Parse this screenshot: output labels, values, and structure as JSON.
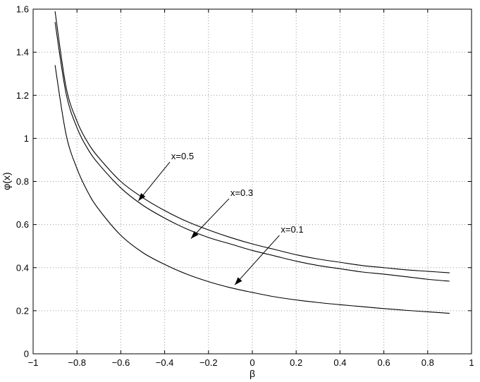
{
  "chart_data": {
    "type": "line",
    "title": "",
    "xlabel": "β",
    "ylabel": "φ(x)",
    "xlim": [
      -1,
      1
    ],
    "ylim": [
      0,
      1.6
    ],
    "grid": true,
    "xticks": [
      -1,
      -0.8,
      -0.6,
      -0.4,
      -0.2,
      0,
      0.2,
      0.4,
      0.6,
      0.8,
      1
    ],
    "xtick_labels": [
      "−1",
      "−0.8",
      "−0.6",
      "−0.4",
      "−0.2",
      "0",
      "0.2",
      "0.4",
      "0.6",
      "0.8",
      "1"
    ],
    "yticks": [
      0,
      0.2,
      0.4,
      0.6,
      0.8,
      1,
      1.2,
      1.4,
      1.6
    ],
    "ytick_labels": [
      "0",
      "0.2",
      "0.4",
      "0.6",
      "0.8",
      "1",
      "1.2",
      "1.4",
      "1.6"
    ],
    "x": [
      -0.9,
      -0.85,
      -0.8,
      -0.75,
      -0.7,
      -0.6,
      -0.5,
      -0.4,
      -0.3,
      -0.2,
      -0.1,
      0,
      0.1,
      0.2,
      0.3,
      0.4,
      0.5,
      0.6,
      0.7,
      0.8,
      0.9
    ],
    "series": [
      {
        "name": "x=0.5",
        "values": [
          1.59,
          1.24,
          1.08,
          0.98,
          0.91,
          0.8,
          0.725,
          0.665,
          0.615,
          0.575,
          0.54,
          0.51,
          0.485,
          0.46,
          0.44,
          0.425,
          0.41,
          0.4,
          0.39,
          0.383,
          0.376
        ]
      },
      {
        "name": "x=0.3",
        "values": [
          1.54,
          1.21,
          1.05,
          0.95,
          0.88,
          0.77,
          0.69,
          0.63,
          0.58,
          0.54,
          0.51,
          0.48,
          0.455,
          0.43,
          0.41,
          0.395,
          0.38,
          0.37,
          0.358,
          0.346,
          0.337
        ]
      },
      {
        "name": "x=0.1",
        "values": [
          1.34,
          1.02,
          0.86,
          0.75,
          0.67,
          0.55,
          0.47,
          0.415,
          0.37,
          0.335,
          0.307,
          0.285,
          0.265,
          0.25,
          0.238,
          0.228,
          0.219,
          0.21,
          0.202,
          0.195,
          0.188
        ]
      }
    ],
    "annotations": [
      {
        "text": "x=0.5",
        "text_x": -0.37,
        "text_y": 0.89,
        "point_x": -0.52,
        "point_y": 0.71
      },
      {
        "text": "x=0.3",
        "text_x": -0.1,
        "text_y": 0.72,
        "point_x": -0.28,
        "point_y": 0.535
      },
      {
        "text": "x=0.1",
        "text_x": 0.13,
        "text_y": 0.55,
        "point_x": -0.08,
        "point_y": 0.32
      }
    ]
  }
}
